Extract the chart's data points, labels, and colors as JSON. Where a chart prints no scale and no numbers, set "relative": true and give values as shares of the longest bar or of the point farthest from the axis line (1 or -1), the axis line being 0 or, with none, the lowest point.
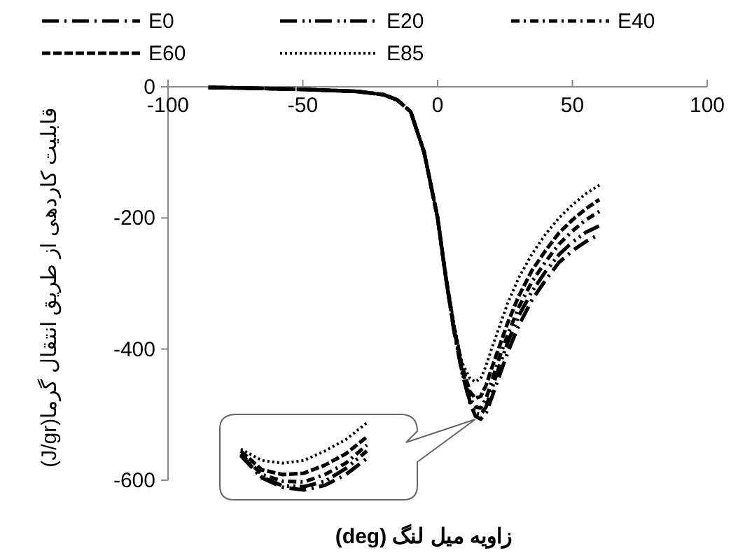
{
  "chart_data": [
    {
      "type": "line",
      "xlabel": "زاویه میل لنگ (deg)",
      "ylabel": "قابلیت کاردهی از طریق انتقال گرما(J/gr)",
      "xlim": [
        -100,
        100
      ],
      "xticks": [
        -100,
        -50,
        0,
        50,
        100
      ],
      "ylim": [
        -600,
        0
      ],
      "yticks": [
        -600,
        -400,
        -200,
        0
      ],
      "legend": "top",
      "grid": false,
      "marker": "none",
      "x": [
        -85,
        -70,
        -50,
        -30,
        -20,
        -15,
        -10,
        -5,
        0,
        3,
        6,
        9,
        12,
        14,
        16,
        18,
        20,
        23,
        26,
        30,
        35,
        40,
        45,
        50,
        55,
        60
      ],
      "series": [
        {
          "name": "E0",
          "color": "#000000",
          "line_style": "longdashdot",
          "values": [
            -1,
            -2,
            -4,
            -7,
            -12,
            -20,
            -38,
            -100,
            -200,
            -290,
            -370,
            -435,
            -482,
            -502,
            -507,
            -497,
            -475,
            -440,
            -405,
            -365,
            -325,
            -295,
            -268,
            -250,
            -236,
            -225
          ]
        },
        {
          "name": "E20",
          "color": "#000000",
          "line_style": "longdashdotdot",
          "values": [
            -1,
            -2,
            -4,
            -7,
            -12,
            -20,
            -38,
            -100,
            -200,
            -290,
            -370,
            -433,
            -480,
            -498,
            -500,
            -488,
            -462,
            -425,
            -390,
            -350,
            -312,
            -282,
            -256,
            -237,
            -222,
            -212
          ]
        },
        {
          "name": "E40",
          "color": "#000000",
          "line_style": "dashdot",
          "values": [
            -1,
            -2,
            -4,
            -7,
            -12,
            -20,
            -38,
            -100,
            -200,
            -290,
            -368,
            -430,
            -475,
            -488,
            -490,
            -475,
            -450,
            -412,
            -378,
            -337,
            -297,
            -267,
            -240,
            -220,
            -203,
            -190
          ]
        },
        {
          "name": "E60",
          "color": "#000000",
          "line_style": "dashed",
          "values": [
            -1,
            -2,
            -4,
            -7,
            -12,
            -20,
            -38,
            -100,
            -200,
            -288,
            -365,
            -425,
            -465,
            -475,
            -472,
            -455,
            -430,
            -395,
            -360,
            -320,
            -280,
            -250,
            -223,
            -203,
            -186,
            -172
          ]
        },
        {
          "name": "E85",
          "color": "#000000",
          "line_style": "dotted",
          "values": [
            -1,
            -2,
            -4,
            -7,
            -12,
            -20,
            -38,
            -100,
            -200,
            -285,
            -360,
            -420,
            -445,
            -450,
            -445,
            -425,
            -400,
            -365,
            -330,
            -292,
            -255,
            -225,
            -200,
            -180,
            -163,
            -150
          ]
        }
      ]
    },
    {
      "type": "line",
      "relative": true,
      "categories": [
        null,
        null,
        null,
        null,
        null,
        null,
        null
      ],
      "series": [
        {
          "color": "#000000",
          "line_style": "longdashdot",
          "values": [
            0.51,
            0.18,
            0.04,
            0,
            0.07,
            0.23,
            0.47
          ]
        },
        {
          "color": "#000000",
          "line_style": "longdashdotdot",
          "values": [
            0.52,
            0.19,
            0.06,
            0.05,
            0.13,
            0.32,
            0.58
          ]
        },
        {
          "color": "#000000",
          "line_style": "dashdot",
          "values": [
            0.54,
            0.23,
            0.13,
            0.12,
            0.23,
            0.4,
            0.67
          ]
        },
        {
          "color": "#000000",
          "line_style": "dashed",
          "values": [
            0.58,
            0.3,
            0.23,
            0.25,
            0.37,
            0.54,
            0.79
          ]
        },
        {
          "color": "#000000",
          "line_style": "dotted",
          "values": [
            0.61,
            0.44,
            0.4,
            0.44,
            0.58,
            0.75,
            1
          ]
        }
      ]
    }
  ]
}
